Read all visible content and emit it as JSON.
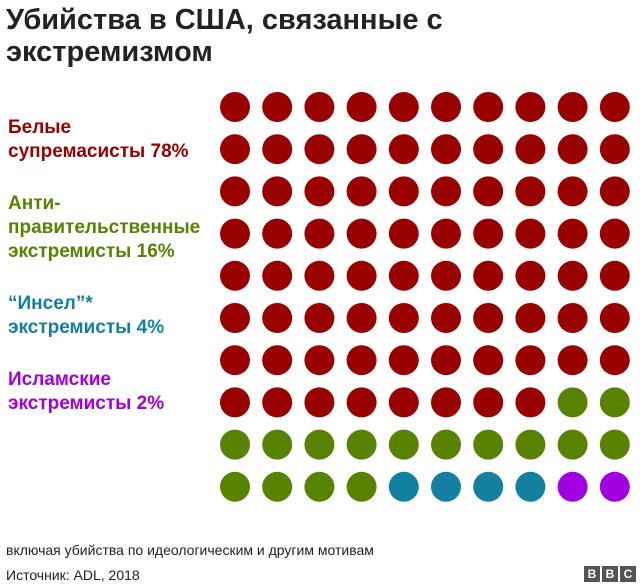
{
  "title": "Убийства в США, связанные с экстремизмом",
  "legend": [
    {
      "line1": "Белые",
      "line2": "супремасисты 78%",
      "color": "#990000"
    },
    {
      "line1": "Анти-",
      "line2": "правительственные",
      "line3": "экстремисты 16%",
      "color": "#588300"
    },
    {
      "line1": "“Инсел”*",
      "line2": "экстремисты 4%",
      "color": "#1380a1"
    },
    {
      "line1": "Исламские",
      "line2": "экстремисты 2%",
      "color": "#a000e0"
    }
  ],
  "chart_data": {
    "type": "waffle",
    "rows": 10,
    "columns": 10,
    "categories": [
      "Белые супремасисты",
      "Анти-правительственные экстремисты",
      "“Инсел”* экстремисты",
      "Исламские экстремисты"
    ],
    "values": [
      78,
      16,
      4,
      2
    ],
    "unit": "%",
    "colors": [
      "#990000",
      "#588300",
      "#1380a1",
      "#a000e0"
    ]
  },
  "footnote": "включая убийства по идеологическим и другим мотивам",
  "source": "Источник: ADL, 2018",
  "logo": [
    "B",
    "B",
    "C"
  ]
}
